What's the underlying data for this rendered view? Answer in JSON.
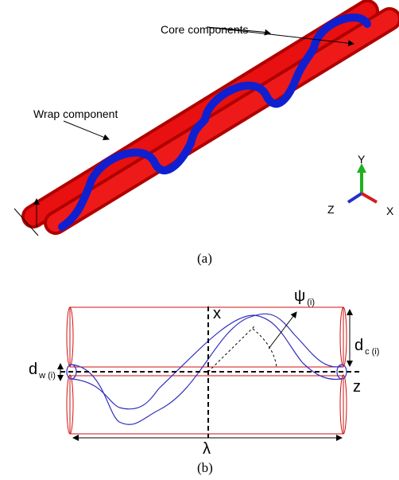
{
  "panel_a": {
    "callouts": [
      "Core components",
      "Wrap component"
    ],
    "axes": {
      "y": "Y",
      "z": "Z",
      "x": "X"
    },
    "caption": "(a)"
  },
  "panel_b": {
    "axis_x": "x",
    "axis_z": "z",
    "angle": {
      "symbol": "ψ",
      "sub": "(i)"
    },
    "wrap_diameter": {
      "symbol": "d",
      "sub": "w (i)"
    },
    "core_diameter": {
      "symbol": "d",
      "sub": "c (i)"
    },
    "wavelength": "λ",
    "caption": "(b)"
  }
}
